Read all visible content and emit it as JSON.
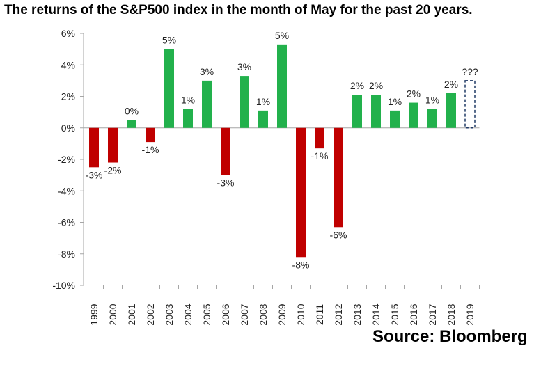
{
  "title": "The returns  of the S&P500 index in the month of May for the past 20 years.",
  "source": "Source: Bloomberg",
  "colors": {
    "positive": "#22b14c",
    "negative": "#c00000",
    "placeholder": "#1f3864",
    "axis": "#a6a6a6"
  },
  "chart_data": {
    "type": "bar",
    "categories": [
      "1999",
      "2000",
      "2001",
      "2002",
      "2003",
      "2004",
      "2005",
      "2006",
      "2007",
      "2008",
      "2009",
      "2010",
      "2011",
      "2012",
      "2013",
      "2014",
      "2015",
      "2016",
      "2017",
      "2018",
      "2019"
    ],
    "values": [
      -2.5,
      -2.2,
      0.5,
      -0.9,
      5.0,
      1.2,
      3.0,
      -3.0,
      3.3,
      1.1,
      5.3,
      -8.2,
      -1.3,
      -6.3,
      2.1,
      2.1,
      1.1,
      1.6,
      1.2,
      2.2,
      null
    ],
    "labels": [
      "-3%",
      "-2%",
      "0%",
      "-1%",
      "5%",
      "1%",
      "3%",
      "-3%",
      "3%",
      "1%",
      "5%",
      "-8%",
      "-1%",
      "-6%",
      "2%",
      "2%",
      "1%",
      "2%",
      "1%",
      "2%",
      "???"
    ],
    "placeholder": {
      "category": "2019",
      "value": 3.0,
      "label": "???"
    },
    "ylim": [
      -10,
      6
    ],
    "yticks": [
      6,
      4,
      2,
      0,
      -2,
      -4,
      -6,
      -8,
      -10
    ],
    "ytick_labels": [
      "6%",
      "4%",
      "2%",
      "0%",
      "-2%",
      "-4%",
      "-6%",
      "-8%",
      "-10%"
    ],
    "xlabel": "",
    "ylabel": "",
    "grid": false,
    "legend": "none"
  }
}
